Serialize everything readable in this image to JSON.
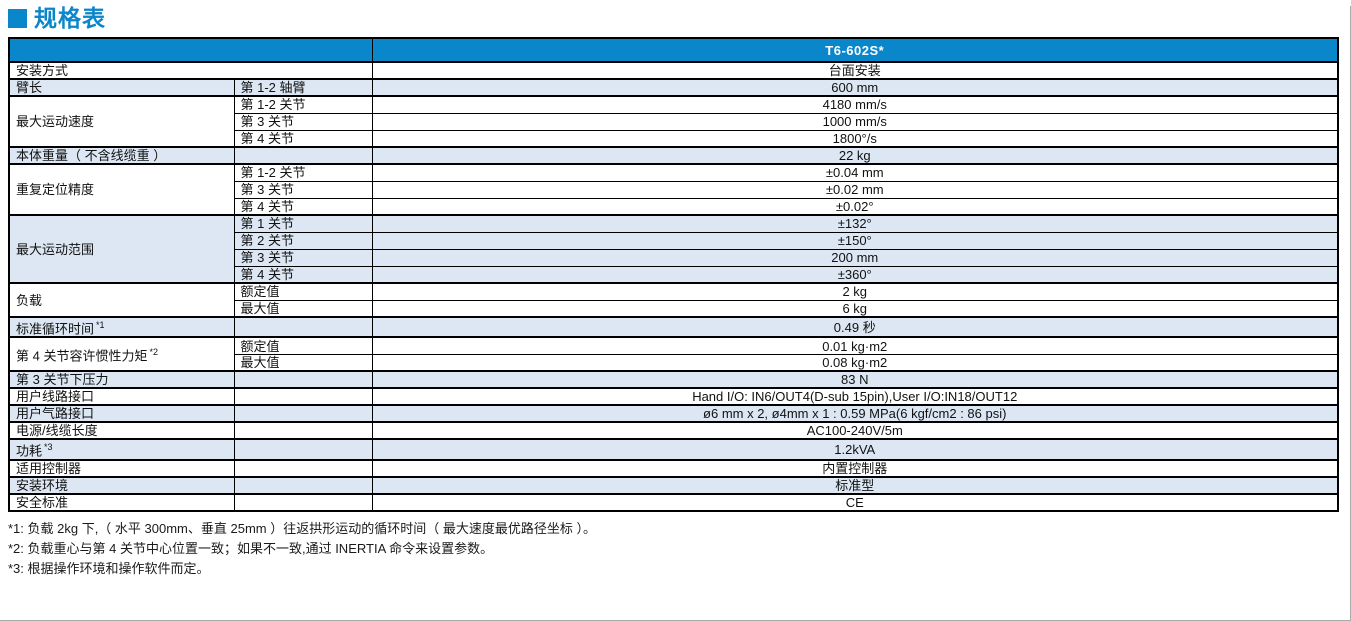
{
  "title": {
    "text": "规格表"
  },
  "colors": {
    "accent": "#0a86ca",
    "row_shade": "#dce7f3",
    "border": "#000000"
  },
  "table": {
    "model_header": "T6-602S*",
    "groups": [
      {
        "label": "安装方式",
        "span_label": true,
        "shaded": false,
        "rows": [
          {
            "sub": "",
            "value": "台面安装"
          }
        ]
      },
      {
        "label": "臂长",
        "span_label": false,
        "shaded": true,
        "rows": [
          {
            "sub": "第 1-2 轴臂",
            "value": "600 mm"
          }
        ]
      },
      {
        "label": "最大运动速度",
        "span_label": false,
        "shaded": false,
        "rows": [
          {
            "sub": "第 1-2 关节",
            "value": "4180 mm/s"
          },
          {
            "sub": "第 3 关节",
            "value": "1000 mm/s"
          },
          {
            "sub": "第 4 关节",
            "value": "1800°/s"
          }
        ]
      },
      {
        "label": "本体重量（ 不含线缆重 ）",
        "span_label": false,
        "shaded": true,
        "rows": [
          {
            "sub": "",
            "value": "22 kg"
          }
        ]
      },
      {
        "label": "重复定位精度",
        "span_label": false,
        "shaded": false,
        "rows": [
          {
            "sub": "第 1-2 关节",
            "value": "±0.04 mm"
          },
          {
            "sub": "第 3 关节",
            "value": "±0.02 mm"
          },
          {
            "sub": "第 4 关节",
            "value": "±0.02°"
          }
        ]
      },
      {
        "label": "最大运动范围",
        "span_label": false,
        "shaded": true,
        "rows": [
          {
            "sub": "第 1 关节",
            "value": "±132°"
          },
          {
            "sub": "第 2 关节",
            "value": "±150°"
          },
          {
            "sub": "第 3 关节",
            "value": "200 mm"
          },
          {
            "sub": "第 4 关节",
            "value": "±360°"
          }
        ]
      },
      {
        "label": "负载",
        "span_label": false,
        "shaded": false,
        "rows": [
          {
            "sub": "额定值",
            "value": "2 kg"
          },
          {
            "sub": "最大值",
            "value": "6 kg"
          }
        ]
      },
      {
        "label": "标准循环时间",
        "sup": "*1",
        "span_label": false,
        "shaded": true,
        "rows": [
          {
            "sub": "",
            "value": "0.49 秒"
          }
        ]
      },
      {
        "label": "第 4 关节容许惯性力矩",
        "sup": "*2",
        "span_label": false,
        "shaded": false,
        "label_middle": true,
        "rows": [
          {
            "sub": "额定值",
            "value": "0.01 kg·m2"
          },
          {
            "sub": "最大值",
            "value": "0.08 kg·m2"
          }
        ]
      },
      {
        "label": "第 3 关节下压力",
        "span_label": false,
        "shaded": true,
        "rows": [
          {
            "sub": "",
            "value": "83 N"
          }
        ]
      },
      {
        "label": "用户线路接口",
        "span_label": false,
        "shaded": false,
        "rows": [
          {
            "sub": "",
            "value": "Hand I/O: IN6/OUT4(D-sub 15pin),User I/O:IN18/OUT12"
          }
        ]
      },
      {
        "label": "用户气路接口",
        "span_label": false,
        "shaded": true,
        "rows": [
          {
            "sub": "",
            "value": "ø6 mm x 2, ø4mm x 1 : 0.59 MPa(6 kgf/cm2 : 86 psi)"
          }
        ]
      },
      {
        "label": "电源/线缆长度",
        "span_label": false,
        "shaded": false,
        "rows": [
          {
            "sub": "",
            "value": "AC100-240V/5m"
          }
        ]
      },
      {
        "label": "功耗",
        "sup": "*3",
        "span_label": false,
        "shaded": true,
        "rows": [
          {
            "sub": "",
            "value": "1.2kVA"
          }
        ]
      },
      {
        "label": "适用控制器",
        "span_label": false,
        "shaded": false,
        "rows": [
          {
            "sub": "",
            "value": "内置控制器"
          }
        ]
      },
      {
        "label": "安装环境",
        "span_label": false,
        "shaded": true,
        "rows": [
          {
            "sub": "",
            "value": "标准型"
          }
        ]
      },
      {
        "label": "安全标准",
        "span_label": false,
        "shaded": false,
        "rows": [
          {
            "sub": "",
            "value": "CE"
          }
        ]
      }
    ]
  },
  "footnotes": [
    "*1: 负载 2kg 下,（ 水平 300mm、垂直 25mm ）往返拱形运动的循环时间（ 最大速度最优路径坐标 ）。",
    "*2: 负载重心与第 4 关节中心位置一致；如果不一致,通过 INERTIA 命令来设置参数。",
    "*3: 根据操作环境和操作软件而定。"
  ]
}
